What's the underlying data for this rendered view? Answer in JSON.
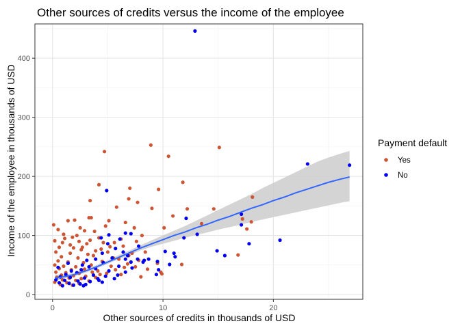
{
  "chart_data": {
    "type": "scatter",
    "title": "Other sources of credits versus the income of the employee",
    "xlabel": "Other sources of credits in thousands of USD",
    "ylabel": "Income of the employee in thousands of USD",
    "xlim": [
      -1.6,
      28.1
    ],
    "ylim": [
      -8,
      458
    ],
    "x_ticks": [
      0,
      10,
      20
    ],
    "y_ticks": [
      0,
      100,
      200,
      300,
      400
    ],
    "grid": true,
    "legend": {
      "title": "Payment default",
      "position": "right",
      "entries": [
        {
          "label": "Yes",
          "color": "#cc5533"
        },
        {
          "label": "No",
          "color": "#0000ee"
        }
      ]
    },
    "series": [
      {
        "name": "Yes",
        "color": "#cc5533",
        "points": [
          [
            4.7,
            242
          ],
          [
            8.9,
            253
          ],
          [
            10.5,
            234
          ],
          [
            15.1,
            249
          ],
          [
            11.8,
            190
          ],
          [
            9.6,
            178
          ],
          [
            4.2,
            186
          ],
          [
            7.0,
            180
          ],
          [
            6.9,
            162
          ],
          [
            3.4,
            159
          ],
          [
            7.7,
            156
          ],
          [
            5.8,
            148
          ],
          [
            9.0,
            146
          ],
          [
            12.2,
            145
          ],
          [
            14.6,
            145
          ],
          [
            18.1,
            165
          ],
          [
            10.9,
            133
          ],
          [
            3.3,
            130
          ],
          [
            3.5,
            130
          ],
          [
            17.2,
            128
          ],
          [
            2.0,
            126
          ],
          [
            1.4,
            125
          ],
          [
            5.1,
            125
          ],
          [
            6.6,
            122
          ],
          [
            0.1,
            118
          ],
          [
            13.5,
            120
          ],
          [
            18.0,
            123
          ],
          [
            10.1,
            113
          ],
          [
            7.4,
            113
          ],
          [
            4.8,
            116
          ],
          [
            17.6,
            111
          ],
          [
            0.5,
            110
          ],
          [
            2.9,
            108
          ],
          [
            3.8,
            107
          ],
          [
            8.1,
            100
          ],
          [
            1.8,
            97
          ],
          [
            1.1,
            95
          ],
          [
            4.2,
            96
          ],
          [
            0.2,
            91
          ],
          [
            2.4,
            90
          ],
          [
            3.1,
            86
          ],
          [
            5.6,
            88
          ],
          [
            6.4,
            82
          ],
          [
            0.6,
            80
          ],
          [
            1.9,
            79
          ],
          [
            2.6,
            76
          ],
          [
            4.4,
            77
          ],
          [
            0.3,
            72
          ],
          [
            1.6,
            70
          ],
          [
            3.2,
            68
          ],
          [
            5.0,
            72
          ],
          [
            7.2,
            70
          ],
          [
            0.8,
            64
          ],
          [
            2.3,
            62
          ],
          [
            3.7,
            66
          ],
          [
            6.0,
            60
          ],
          [
            16.8,
            67
          ],
          [
            11.7,
            51
          ],
          [
            9.5,
            53
          ],
          [
            0.5,
            57
          ],
          [
            1.4,
            55
          ],
          [
            2.8,
            54
          ],
          [
            4.5,
            56
          ],
          [
            7.8,
            58
          ],
          [
            0.2,
            50
          ],
          [
            1.0,
            48
          ],
          [
            2.1,
            47
          ],
          [
            3.5,
            50
          ],
          [
            5.3,
            48
          ],
          [
            6.5,
            46
          ],
          [
            0.6,
            44
          ],
          [
            1.7,
            42
          ],
          [
            2.9,
            43
          ],
          [
            4.1,
            40
          ],
          [
            5.7,
            42
          ],
          [
            0.3,
            38
          ],
          [
            1.2,
            37
          ],
          [
            2.4,
            36
          ],
          [
            3.6,
            38
          ],
          [
            4.9,
            36
          ],
          [
            0.8,
            33
          ],
          [
            1.9,
            32
          ],
          [
            3.0,
            31
          ],
          [
            4.3,
            34
          ],
          [
            0.4,
            29
          ],
          [
            1.5,
            28
          ],
          [
            2.6,
            27
          ],
          [
            3.9,
            29
          ],
          [
            0.9,
            25
          ],
          [
            2.1,
            24
          ],
          [
            3.3,
            23
          ],
          [
            0.2,
            21
          ],
          [
            1.3,
            20
          ],
          [
            2.4,
            19
          ],
          [
            0.7,
            17
          ],
          [
            1.8,
            16
          ],
          [
            6.8,
            52
          ],
          [
            7.5,
            47
          ],
          [
            8.6,
            43
          ],
          [
            9.8,
            38
          ],
          [
            6.2,
            34
          ],
          [
            8.0,
            30
          ],
          [
            9.9,
            35
          ],
          [
            5.5,
            62
          ],
          [
            6.9,
            66
          ],
          [
            8.4,
            72
          ],
          [
            1.0,
            102
          ],
          [
            2.2,
            100
          ],
          [
            1.6,
            84
          ],
          [
            2.7,
            80
          ],
          [
            3.4,
            92
          ],
          [
            4.6,
            88
          ],
          [
            0.9,
            88
          ],
          [
            3.9,
            74
          ],
          [
            5.2,
            81
          ],
          [
            6.2,
            94
          ],
          [
            7.6,
            90
          ],
          [
            2.5,
            113
          ]
        ]
      },
      {
        "name": "No",
        "color": "#0000ee",
        "points": [
          [
            12.9,
            446
          ],
          [
            23.1,
            221
          ],
          [
            26.9,
            219
          ],
          [
            4.9,
            176
          ],
          [
            12.1,
            129
          ],
          [
            17.1,
            136
          ],
          [
            17.1,
            118
          ],
          [
            13.1,
            102
          ],
          [
            11.9,
            96
          ],
          [
            20.6,
            92
          ],
          [
            17.8,
            86
          ],
          [
            14.9,
            74
          ],
          [
            15.6,
            66
          ],
          [
            11.0,
            70
          ],
          [
            10.2,
            73
          ],
          [
            11.1,
            64
          ],
          [
            10.6,
            51
          ],
          [
            9.5,
            56
          ],
          [
            9.6,
            42
          ],
          [
            8.2,
            55
          ],
          [
            9.4,
            34
          ],
          [
            6.6,
            104
          ],
          [
            7.1,
            103
          ],
          [
            5.1,
            101
          ],
          [
            4.4,
            96
          ],
          [
            6.1,
            94
          ],
          [
            5.7,
            78
          ],
          [
            6.4,
            72
          ],
          [
            7.8,
            82
          ],
          [
            8.7,
            60
          ],
          [
            7.7,
            60
          ],
          [
            7.1,
            55
          ],
          [
            6.6,
            60
          ],
          [
            4.5,
            70
          ],
          [
            5.4,
            62
          ],
          [
            3.9,
            60
          ],
          [
            3.1,
            58
          ],
          [
            4.6,
            54
          ],
          [
            6.0,
            48
          ],
          [
            7.2,
            45
          ],
          [
            3.9,
            44
          ],
          [
            2.6,
            42
          ],
          [
            1.7,
            40
          ],
          [
            5.1,
            40
          ],
          [
            6.6,
            38
          ],
          [
            2.2,
            37
          ],
          [
            1.2,
            34
          ],
          [
            3.7,
            33
          ],
          [
            4.8,
            31
          ],
          [
            0.7,
            30
          ],
          [
            1.6,
            29
          ],
          [
            2.9,
            28
          ],
          [
            4.1,
            27
          ],
          [
            0.3,
            25
          ],
          [
            1.1,
            24
          ],
          [
            2.3,
            23
          ],
          [
            3.4,
            22
          ],
          [
            4.5,
            21
          ],
          [
            0.6,
            20
          ],
          [
            1.5,
            19
          ],
          [
            2.5,
            18
          ],
          [
            3.0,
            17
          ],
          [
            1.9,
            16
          ],
          [
            0.9,
            15
          ],
          [
            2.8,
            15
          ],
          [
            5.9,
            33
          ],
          [
            8.3,
            58
          ],
          [
            6.8,
            66
          ],
          [
            5.0,
            86
          ],
          [
            1.4,
            53
          ],
          [
            2.7,
            50
          ],
          [
            0.5,
            46
          ],
          [
            3.3,
            47
          ],
          [
            4.2,
            24
          ],
          [
            5.6,
            27
          ]
        ]
      }
    ],
    "trend": {
      "type": "smooth",
      "color": "#3366ff",
      "band_color": "#cccccc",
      "points": [
        [
          0.2,
          28,
          22,
          34
        ],
        [
          1,
          30,
          27,
          33
        ],
        [
          2,
          34,
          31,
          37
        ],
        [
          3,
          40,
          37,
          43
        ],
        [
          4,
          47,
          44,
          50
        ],
        [
          5,
          55,
          52,
          58
        ],
        [
          6,
          63,
          60,
          67
        ],
        [
          7,
          71,
          67,
          75
        ],
        [
          8,
          79,
          75,
          84
        ],
        [
          9,
          86,
          81,
          92
        ],
        [
          10,
          93,
          86,
          100
        ],
        [
          11,
          100,
          91,
          108
        ],
        [
          12,
          106,
          96,
          116
        ],
        [
          13,
          113,
          101,
          125
        ],
        [
          14,
          119,
          105,
          134
        ],
        [
          15,
          126,
          110,
          143
        ],
        [
          16,
          132,
          114,
          152
        ],
        [
          17,
          139,
          118,
          161
        ],
        [
          18,
          146,
          123,
          170
        ],
        [
          19,
          152,
          127,
          180
        ],
        [
          20,
          159,
          131,
          189
        ],
        [
          21,
          165,
          135,
          198
        ],
        [
          22,
          172,
          139,
          207
        ],
        [
          23,
          178,
          143,
          216
        ],
        [
          24,
          184,
          147,
          225
        ],
        [
          25,
          190,
          151,
          232
        ],
        [
          26,
          195,
          155,
          238
        ],
        [
          26.9,
          199,
          158,
          243
        ]
      ]
    }
  }
}
